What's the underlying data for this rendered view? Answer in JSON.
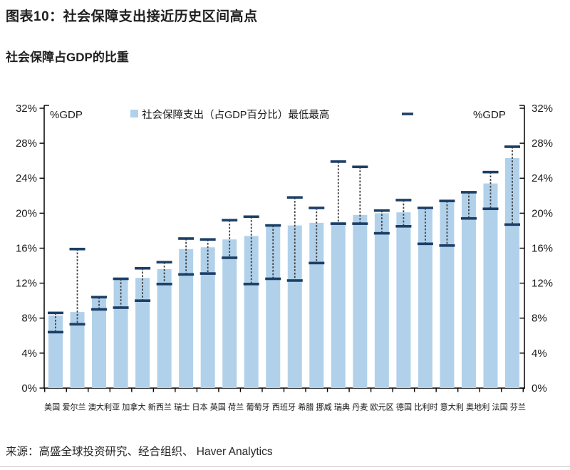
{
  "header": {
    "title": "图表10：社会保障支出接近历史区间高点",
    "subtitle": "社会保障占GDP的比重"
  },
  "chart_data": {
    "type": "bar",
    "title": "社会保障占GDP的比重",
    "unit_label_left": "%GDP",
    "unit_label_right": "%GDP",
    "legend": {
      "bar_label": "社会保障支出（占GDP百分比）",
      "range_label": "最低最高"
    },
    "ylim": [
      0,
      32
    ],
    "ytick_step": 4,
    "ytick_suffix": "%",
    "grid": false,
    "legend_position": "top-center",
    "series_note": "bar = current level; dashed whisker with caps = historical min/max range",
    "countries": [
      {
        "label": "美国",
        "en": "usa",
        "current": 8.3,
        "min": 6.4,
        "max": 8.6
      },
      {
        "label": "爱尔兰",
        "en": "ireland",
        "current": 8.7,
        "min": 7.3,
        "max": 15.9
      },
      {
        "label": "澳大利亚",
        "en": "australia",
        "current": 10.3,
        "min": 9.0,
        "max": 10.4
      },
      {
        "label": "加拿大",
        "en": "canada",
        "current": 12.4,
        "min": 9.2,
        "max": 12.5
      },
      {
        "label": "新西兰",
        "en": "new-zealand",
        "current": 12.6,
        "min": 10.0,
        "max": 13.7
      },
      {
        "label": "瑞士",
        "en": "switzerland",
        "current": 13.6,
        "min": 11.9,
        "max": 14.4
      },
      {
        "label": "日本",
        "en": "japan",
        "current": 15.9,
        "min": 13.0,
        "max": 17.1
      },
      {
        "label": "英国",
        "en": "uk",
        "current": 16.1,
        "min": 13.1,
        "max": 17.0
      },
      {
        "label": "荷兰",
        "en": "netherlands",
        "current": 17.0,
        "min": 14.9,
        "max": 19.2
      },
      {
        "label": "葡萄牙",
        "en": "portugal",
        "current": 17.4,
        "min": 11.9,
        "max": 19.6
      },
      {
        "label": "西班牙",
        "en": "spain",
        "current": 18.5,
        "min": 12.5,
        "max": 18.6
      },
      {
        "label": "希腊",
        "en": "greece",
        "current": 18.6,
        "min": 12.3,
        "max": 21.8
      },
      {
        "label": "挪威",
        "en": "norway",
        "current": 18.9,
        "min": 14.3,
        "max": 20.6
      },
      {
        "label": "瑞典",
        "en": "sweden",
        "current": 19.0,
        "min": 18.8,
        "max": 25.9
      },
      {
        "label": "丹麦",
        "en": "denmark",
        "current": 19.8,
        "min": 18.8,
        "max": 25.3
      },
      {
        "label": "欧元区",
        "en": "eurozone",
        "current": 20.0,
        "min": 17.7,
        "max": 20.3
      },
      {
        "label": "德国",
        "en": "germany",
        "current": 20.1,
        "min": 18.5,
        "max": 21.5
      },
      {
        "label": "比利时",
        "en": "belgium",
        "current": 20.4,
        "min": 16.5,
        "max": 20.6
      },
      {
        "label": "意大利",
        "en": "italy",
        "current": 21.3,
        "min": 16.3,
        "max": 21.4
      },
      {
        "label": "奥地利",
        "en": "austria",
        "current": 22.3,
        "min": 19.4,
        "max": 22.4
      },
      {
        "label": "法国",
        "en": "france",
        "current": 23.4,
        "min": 20.5,
        "max": 24.7
      },
      {
        "label": "芬兰",
        "en": "finland",
        "current": 26.3,
        "min": 18.7,
        "max": 27.6
      }
    ]
  },
  "colors": {
    "bar_fill": "#b1d1eb",
    "cap_navy": "#1c3f66",
    "whisker": "#404040",
    "axis": "#000000",
    "text": "#1a1a1a"
  },
  "source": {
    "text": "来源：高盛全球投资研究、经合组织、 Haver Analytics"
  }
}
